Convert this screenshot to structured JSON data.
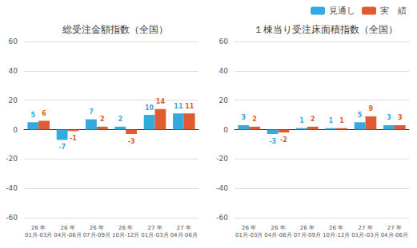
{
  "chart_data": [
    {
      "type": "bar",
      "title": "総受注金額指数（全国）",
      "categories": [
        "26 年\n01月-03月",
        "26 年\n04月-06月",
        "26 年\n07月-09月",
        "26 年\n10月-12月",
        "27 年\n01月-03月",
        "27 年\n04月-06月"
      ],
      "series": [
        {
          "name": "見通し",
          "color": "#35aadf",
          "values": [
            5,
            -7,
            7,
            2,
            10,
            11
          ]
        },
        {
          "name": "実　績",
          "color": "#e05a32",
          "values": [
            6,
            -1,
            2,
            -3,
            14,
            11
          ]
        }
      ],
      "ylim": [
        -60,
        60
      ],
      "yticks": [
        -60,
        -40,
        -20,
        0,
        20,
        40,
        60
      ],
      "grid": true,
      "data_labels": true,
      "legend": "upper right"
    },
    {
      "type": "bar",
      "title": "１棟当り受注床面積指数（全国）",
      "categories": [
        "26 年\n01月-03月",
        "26 年\n04月-06月",
        "26 年\n07月-09月",
        "26 年\n10月-12月",
        "27 年\n01月-03月",
        "27 年\n04月-06月"
      ],
      "series": [
        {
          "name": "見通し",
          "color": "#35aadf",
          "values": [
            3,
            -3,
            1,
            1,
            5,
            3
          ]
        },
        {
          "name": "実　績",
          "color": "#e05a32",
          "values": [
            2,
            -2,
            2,
            1,
            9,
            3
          ]
        }
      ],
      "ylim": [
        -60,
        60
      ],
      "yticks": [
        -60,
        -40,
        -20,
        0,
        20,
        40,
        60
      ],
      "grid": true,
      "data_labels": true,
      "legend": "upper right"
    }
  ]
}
